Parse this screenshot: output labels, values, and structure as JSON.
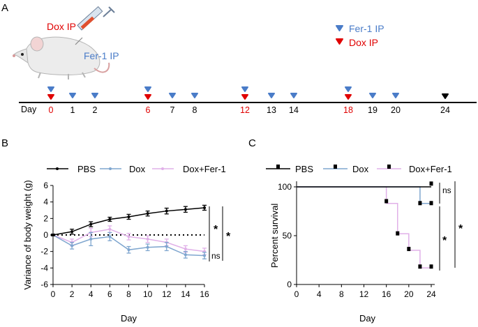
{
  "panel_labels": {
    "a": "A",
    "b": "B",
    "c": "C"
  },
  "colors": {
    "dox": "#e00000",
    "fer": "#4a7cc8",
    "pbs": "#000000",
    "dox_line": "#7fa6cf",
    "doxfer_line": "#e0b0e8"
  },
  "timeline": {
    "day_label": "Day",
    "days": [
      {
        "label": "0",
        "color": "red",
        "markers": [
          "fer",
          "dox"
        ]
      },
      {
        "label": "1",
        "color": "black",
        "markers": [
          "fer"
        ]
      },
      {
        "label": "2",
        "color": "black",
        "markers": [
          "fer"
        ]
      },
      {
        "label": "6",
        "color": "red",
        "markers": [
          "fer",
          "dox"
        ]
      },
      {
        "label": "7",
        "color": "black",
        "markers": [
          "fer"
        ]
      },
      {
        "label": "8",
        "color": "black",
        "markers": [
          "fer"
        ]
      },
      {
        "label": "12",
        "color": "red",
        "markers": [
          "fer",
          "dox"
        ]
      },
      {
        "label": "13",
        "color": "black",
        "markers": [
          "fer"
        ]
      },
      {
        "label": "14",
        "color": "black",
        "markers": [
          "fer"
        ]
      },
      {
        "label": "18",
        "color": "red",
        "markers": [
          "fer",
          "dox"
        ]
      },
      {
        "label": "19",
        "color": "black",
        "markers": [
          "fer"
        ]
      },
      {
        "label": "20",
        "color": "black",
        "markers": [
          "fer"
        ]
      },
      {
        "label": "24",
        "color": "black",
        "markers": [
          "end"
        ]
      }
    ],
    "legend": {
      "fer": "Fer-1 IP",
      "dox": "Dox IP"
    },
    "mouse_labels": {
      "dox": "Dox IP",
      "fer": "Fer-1 IP"
    }
  },
  "chart_data": [
    {
      "type": "line",
      "ylabel": "Variance of body weight (g)",
      "xlabel": "Day",
      "xlim": [
        0,
        16
      ],
      "ylim": [
        -6,
        6
      ],
      "xticks": [
        "0",
        "2",
        "4",
        "6",
        "8",
        "10",
        "12",
        "14",
        "16"
      ],
      "yticks": [
        "6",
        "4",
        "2",
        "0",
        "-2",
        "-4",
        "-6"
      ],
      "legend": [
        "PBS",
        "Dox",
        "Dox+Fer-1"
      ],
      "x": [
        0,
        2,
        4,
        6,
        8,
        10,
        12,
        14,
        16
      ],
      "series": [
        {
          "name": "PBS",
          "values": [
            0,
            0.4,
            1.3,
            1.9,
            2.2,
            2.6,
            2.9,
            3.1,
            3.3
          ],
          "err": [
            0.1,
            0.3,
            0.3,
            0.25,
            0.3,
            0.3,
            0.35,
            0.35,
            0.3
          ]
        },
        {
          "name": "Dox",
          "values": [
            0,
            -1.3,
            -0.5,
            -0.2,
            -1.8,
            -1.5,
            -1.4,
            -2.4,
            -2.5
          ],
          "err": [
            0.1,
            0.4,
            0.8,
            0.5,
            0.4,
            0.4,
            0.5,
            0.4,
            0.4
          ]
        },
        {
          "name": "Dox+Fer-1",
          "values": [
            0,
            -0.9,
            0.3,
            0.7,
            -0.2,
            -0.5,
            -0.9,
            -1.7,
            -2.0
          ],
          "err": [
            0.1,
            0.4,
            0.5,
            0.4,
            0.4,
            0.4,
            0.4,
            0.4,
            0.4
          ]
        }
      ],
      "reference_line": 0,
      "significance": [
        "*",
        "*",
        "ns"
      ]
    },
    {
      "type": "line",
      "subtype": "kaplan-meier",
      "ylabel": "Percent survival",
      "xlabel": "Day",
      "xlim": [
        0,
        24
      ],
      "ylim": [
        0,
        100
      ],
      "xticks": [
        "0",
        "4",
        "8",
        "12",
        "16",
        "20",
        "24"
      ],
      "yticks": [
        "100",
        "50",
        "0"
      ],
      "legend": [
        "PBS",
        "Dox",
        "Dox+Fer-1"
      ],
      "series": [
        {
          "name": "PBS",
          "steps": [
            [
              0,
              100
            ],
            [
              24,
              100
            ]
          ]
        },
        {
          "name": "Dox",
          "steps": [
            [
              0,
              100
            ],
            [
              22,
              100
            ],
            [
              22,
              83
            ],
            [
              24,
              83
            ]
          ]
        },
        {
          "name": "Dox+Fer-1",
          "steps": [
            [
              0,
              100
            ],
            [
              16,
              100
            ],
            [
              16,
              83
            ],
            [
              18,
              83
            ],
            [
              18,
              52
            ],
            [
              20,
              52
            ],
            [
              20,
              35
            ],
            [
              22,
              35
            ],
            [
              22,
              17
            ],
            [
              24,
              17
            ]
          ]
        }
      ],
      "censor_marks": [
        {
          "series": "PBS",
          "x": 24,
          "y": 103
        },
        {
          "series": "Dox",
          "x": 22,
          "y": 83
        },
        {
          "series": "Dox",
          "x": 24,
          "y": 83
        },
        {
          "series": "Dox+Fer-1",
          "x": 16,
          "y": 85
        },
        {
          "series": "Dox+Fer-1",
          "x": 18,
          "y": 52
        },
        {
          "series": "Dox+Fer-1",
          "x": 20,
          "y": 36
        },
        {
          "series": "Dox+Fer-1",
          "x": 22,
          "y": 18
        },
        {
          "series": "Dox+Fer-1",
          "x": 24,
          "y": 18
        }
      ],
      "significance": [
        "ns",
        "*",
        "*"
      ]
    }
  ]
}
